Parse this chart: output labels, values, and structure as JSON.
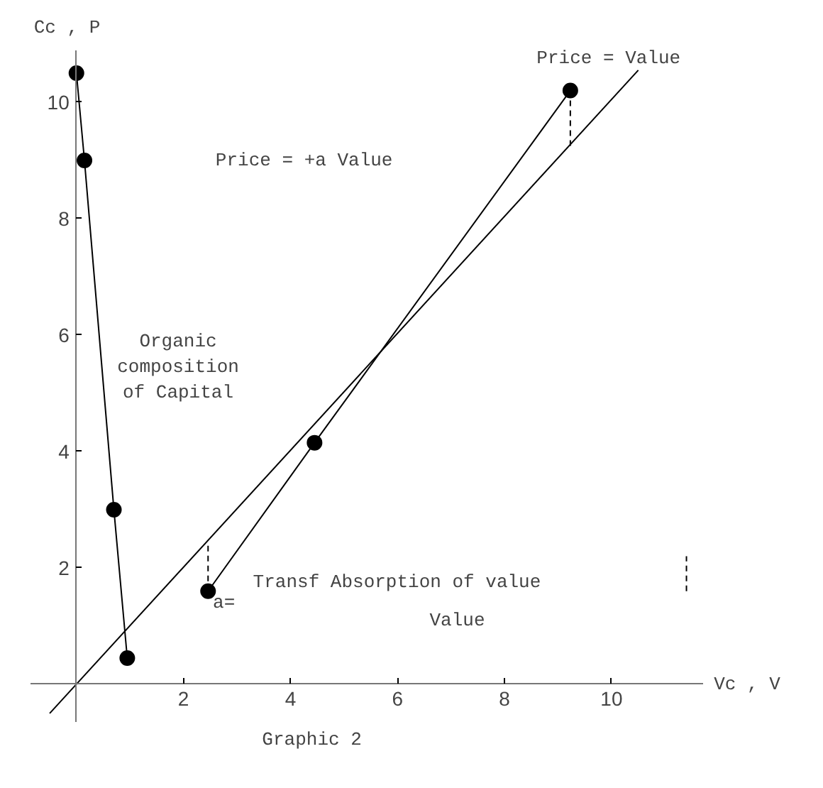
{
  "chart_data": {
    "type": "line",
    "xlabel": "Vc , V",
    "ylabel": "Cc , P",
    "xlim": [
      -0.85,
      11.7
    ],
    "ylim": [
      -0.65,
      10.9
    ],
    "xticks": [
      2,
      4,
      6,
      8,
      10
    ],
    "yticks": [
      2,
      4,
      6,
      8,
      10
    ],
    "grid": false,
    "marker": "circle",
    "series": [
      {
        "color": "#000000",
        "x": [
          0,
          0.15,
          0.7,
          0.95
        ],
        "values": [
          10.5,
          9.0,
          3.0,
          0.45
        ]
      },
      {
        "color": "#000000",
        "x": [
          2.46,
          4.45,
          9.23
        ],
        "values": [
          1.6,
          4.15,
          10.2
        ]
      },
      {
        "color": "#000000",
        "x": [
          -0.5,
          10.5
        ],
        "values": [
          -0.5,
          10.55
        ],
        "marker": "none"
      },
      {
        "color": "#000000",
        "x": [
          2.46,
          2.46
        ],
        "values": [
          1.6,
          2.4
        ],
        "marker": "none",
        "line_style": "dashed"
      },
      {
        "color": "#000000",
        "x": [
          9.23,
          9.23
        ],
        "values": [
          10.2,
          9.25
        ],
        "marker": "none",
        "line_style": "dashed"
      },
      {
        "color": "#000000",
        "x": [
          11.4,
          11.4
        ],
        "values": [
          1.6,
          2.2
        ],
        "marker": "none",
        "line_style": "dashed"
      }
    ],
    "annotations": [
      "Organic\ncomposition\nof Capital",
      "Price = +a Value",
      "Price = Value",
      "Transf Absorption of value",
      "a=",
      "Value",
      "Graphic 2"
    ]
  }
}
